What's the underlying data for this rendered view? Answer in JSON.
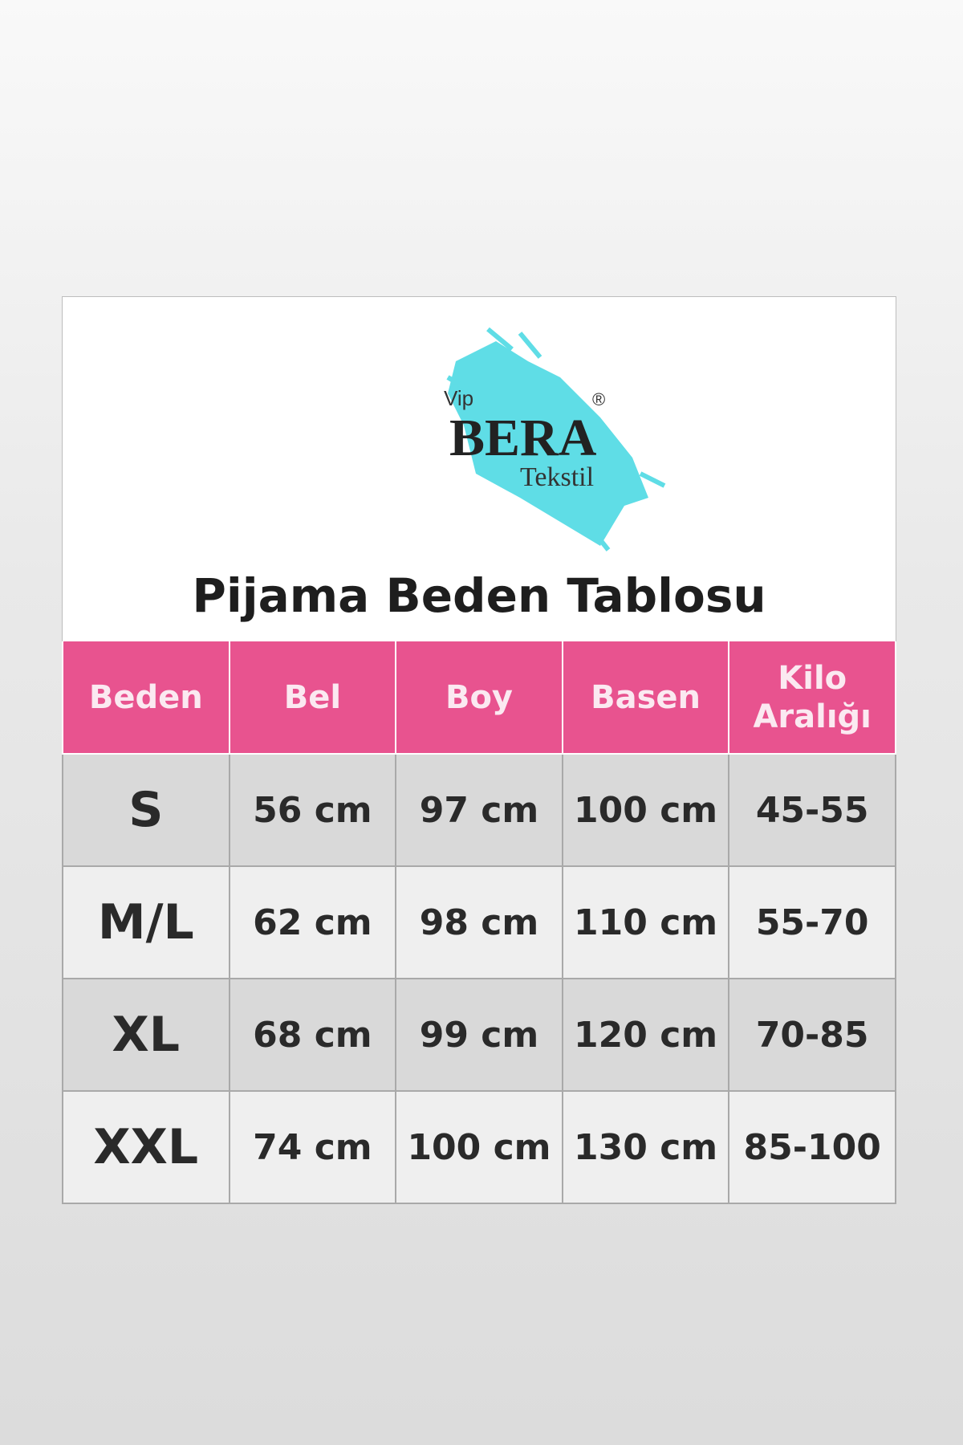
{
  "logo": {
    "prefix": "Vip",
    "brand": "BERA",
    "suffix": "Tekstil",
    "registered": "®",
    "splash_color": "#5fdde6"
  },
  "title": "Pijama Beden Tablosu",
  "colors": {
    "header": "#e8538f",
    "row_dark": "#d9d9d9",
    "row_light": "#efefef"
  },
  "table": {
    "headers": [
      "Beden",
      "Bel",
      "Boy",
      "Basen",
      "Kilo Aralığı"
    ],
    "rows": [
      [
        "S",
        "56 cm",
        "97 cm",
        "100 cm",
        "45-55"
      ],
      [
        "M/L",
        "62 cm",
        "98 cm",
        "110 cm",
        "55-70"
      ],
      [
        "XL",
        "68 cm",
        "99 cm",
        "120 cm",
        "70-85"
      ],
      [
        "XXL",
        "74 cm",
        "100 cm",
        "130 cm",
        "85-100"
      ]
    ]
  }
}
